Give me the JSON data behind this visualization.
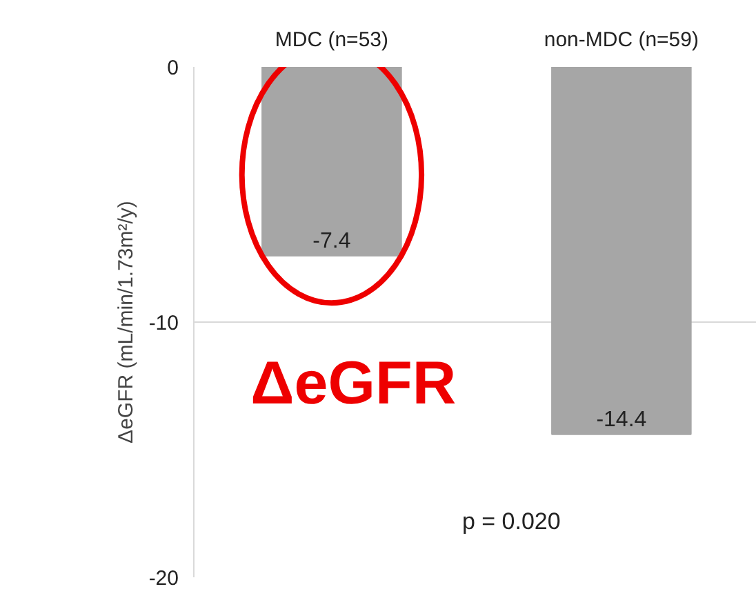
{
  "chart_data": {
    "type": "bar",
    "ylabel": "ΔeGFR (mL/min/1.73m²/y)",
    "categories": [
      "MDC (n=53)",
      "non-MDC (n=59)"
    ],
    "values": [
      -7.4,
      -14.4
    ],
    "color": "#a6a6a6",
    "ylim": [
      -20,
      0
    ],
    "yticks": [
      -20,
      -10,
      0
    ],
    "grid": "y",
    "data_labels": true,
    "annotations": [
      "ΔeGFR",
      "p = 0.020"
    ]
  }
}
